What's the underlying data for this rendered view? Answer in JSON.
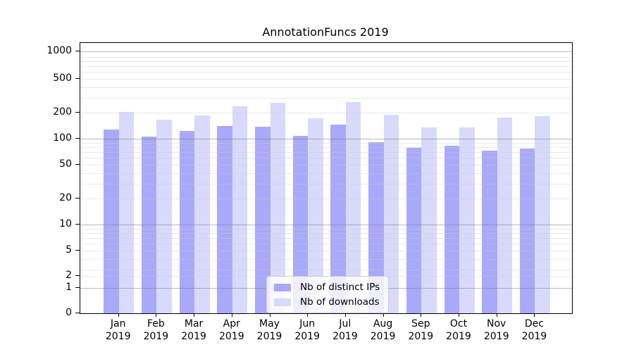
{
  "chart_data": {
    "type": "bar",
    "title": "AnnotationFuncs 2019",
    "categories": [
      "Jan",
      "Feb",
      "Mar",
      "Apr",
      "May",
      "Jun",
      "Jul",
      "Aug",
      "Sep",
      "Oct",
      "Nov",
      "Dec"
    ],
    "year": "2019",
    "series": [
      {
        "name": "Nb of distinct IPs",
        "color": "#a9a9fa",
        "values": [
          127,
          105,
          123,
          140,
          139,
          108,
          145,
          91,
          78,
          83,
          73,
          77
        ]
      },
      {
        "name": "Nb of downloads",
        "color": "#d9d9fb",
        "values": [
          206,
          168,
          186,
          239,
          262,
          174,
          266,
          189,
          135,
          136,
          177,
          183
        ]
      }
    ],
    "yscale": "symlog",
    "yticks": [
      0,
      1,
      2,
      5,
      10,
      20,
      50,
      100,
      200,
      500,
      1000
    ],
    "ylim": [
      0,
      1150
    ],
    "grid": true,
    "legend_position": "lower center"
  },
  "colors": {
    "bar_dark": "#a9a9fa",
    "bar_light": "#d9d9fb",
    "grid_minor": "#ececec",
    "grid_major": "#b0b0b0",
    "spine": "#000000",
    "background": "#ffffff"
  }
}
